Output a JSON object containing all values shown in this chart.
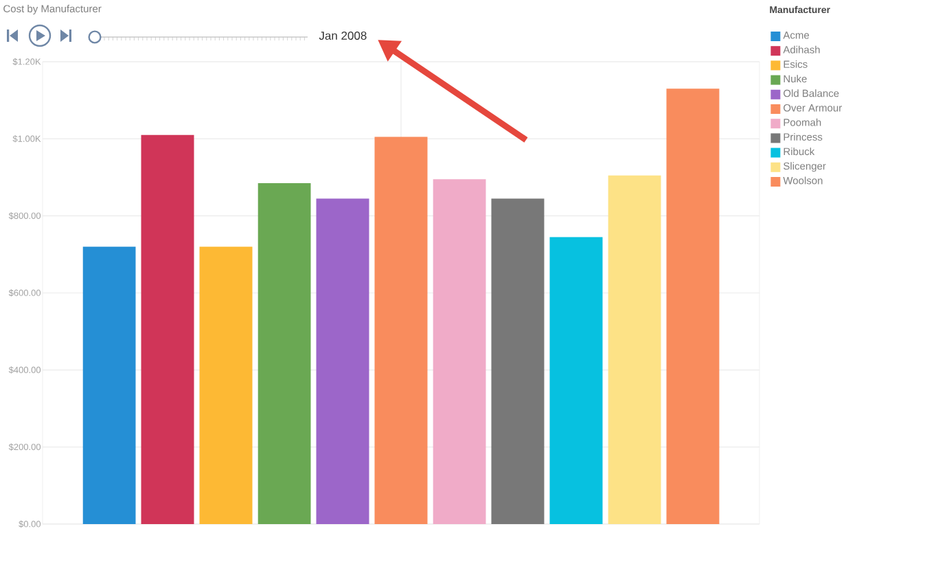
{
  "chart_data": {
    "type": "bar",
    "title": "Cost by Manufacturer",
    "annotations": [
      "Jan 2008"
    ],
    "legend_title": "Manufacturer",
    "legend": "right",
    "grid": true,
    "categories": [
      null
    ],
    "series": [
      {
        "name": "Acme",
        "color": "#258fd5",
        "values": [
          720
        ]
      },
      {
        "name": "Adihash",
        "color": "#d03558",
        "values": [
          1010
        ]
      },
      {
        "name": "Esics",
        "color": "#fdb934",
        "values": [
          720
        ]
      },
      {
        "name": "Nuke",
        "color": "#6aa853",
        "values": [
          885
        ]
      },
      {
        "name": "Old Balance",
        "color": "#9c66c9",
        "values": [
          845
        ]
      },
      {
        "name": "Over Armour",
        "color": "#f98c5d",
        "values": [
          1005
        ]
      },
      {
        "name": "Poomah",
        "color": "#f0abc8",
        "values": [
          895
        ]
      },
      {
        "name": "Princess",
        "color": "#787878",
        "values": [
          845
        ]
      },
      {
        "name": "Ribuck",
        "color": "#07c1e0",
        "values": [
          745
        ]
      },
      {
        "name": "Slicenger",
        "color": "#fde286",
        "values": [
          905
        ]
      },
      {
        "name": "Woolson",
        "color": "#f98c5d",
        "values": [
          1130
        ]
      }
    ],
    "ylim": [
      0,
      1200
    ],
    "yticks": [
      {
        "value": 0,
        "label": "$0.00"
      },
      {
        "value": 200,
        "label": "$200.00"
      },
      {
        "value": 400,
        "label": "$400.00"
      },
      {
        "value": 600,
        "label": "$600.00"
      },
      {
        "value": 800,
        "label": "$800.00"
      },
      {
        "value": 1000,
        "label": "$1.00K"
      },
      {
        "value": 1200,
        "label": "$1.20K"
      }
    ]
  }
}
